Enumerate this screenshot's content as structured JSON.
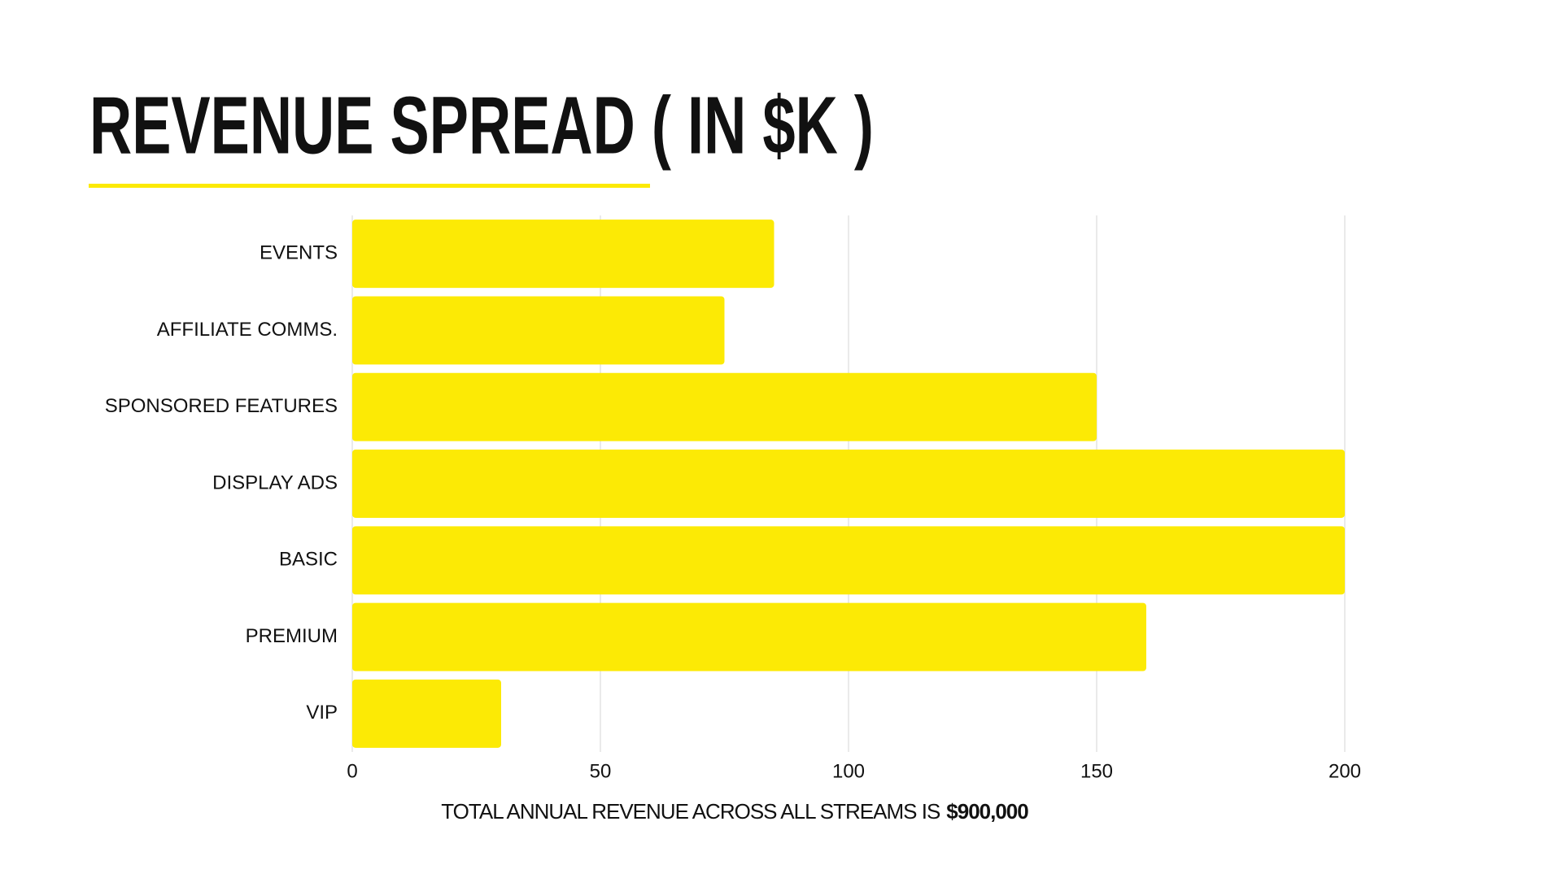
{
  "chart_data": {
    "type": "bar",
    "orientation": "horizontal",
    "title": "REVENUE SPREAD ( IN $K )",
    "categories": [
      "EVENTS",
      "AFFILIATE COMMS.",
      "SPONSORED FEATURES",
      "DISPLAY ADS",
      "BASIC",
      "PREMIUM",
      "VIP"
    ],
    "values": [
      85,
      75,
      150,
      200,
      200,
      160,
      30
    ],
    "color": "#fcea05",
    "xlim": [
      0,
      200
    ],
    "xticks": [
      0,
      50,
      100,
      150,
      200
    ],
    "grid": true,
    "note": "TOTAL ANNUAL REVENUE ACROSS ALL STREAMS IS",
    "note_emphasis": "$900,000"
  }
}
